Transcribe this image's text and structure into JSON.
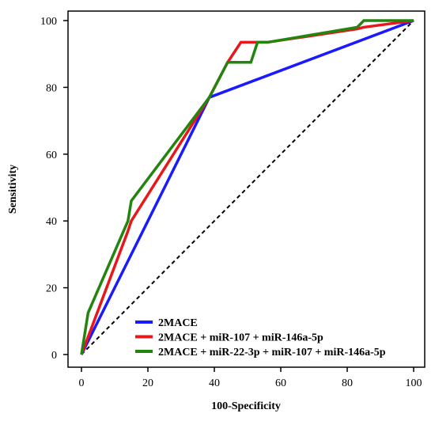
{
  "chart_data": {
    "type": "line",
    "title": "",
    "xlabel": "100-Specificity",
    "ylabel": "Sensitivity",
    "xlim": [
      0,
      100
    ],
    "ylim": [
      0,
      100
    ],
    "xticks": [
      0,
      20,
      40,
      60,
      80,
      100
    ],
    "yticks": [
      0,
      20,
      40,
      60,
      80,
      100
    ],
    "grid": false,
    "legend_position": "bottom-right",
    "reference_line": {
      "x": [
        0,
        100
      ],
      "y": [
        0,
        100
      ],
      "style": "dashed",
      "color": "#000000"
    },
    "series": [
      {
        "name": "2MACE",
        "color": "#1a1aff",
        "x": [
          0,
          38.5,
          100
        ],
        "y": [
          0,
          77,
          100
        ]
      },
      {
        "name": "2MACE + miR-107 + miR-146a-5p",
        "color": "#e8171b",
        "x": [
          0,
          14,
          15,
          38.5,
          44,
          48,
          53,
          56,
          83,
          85,
          100
        ],
        "y": [
          0,
          37,
          40,
          77,
          87.5,
          93.5,
          93.5,
          93.5,
          97.5,
          98,
          100
        ]
      },
      {
        "name": "2MACE + miR-22-3p + miR-107 + miR-146a-5p",
        "color": "#23850f",
        "x": [
          0,
          2,
          14,
          15,
          38.5,
          44,
          49,
          51,
          53,
          56,
          83,
          85,
          100
        ],
        "y": [
          0,
          12.5,
          40,
          46,
          77,
          87.5,
          87.5,
          87.5,
          93.5,
          93.5,
          98,
          100,
          100
        ]
      }
    ]
  }
}
